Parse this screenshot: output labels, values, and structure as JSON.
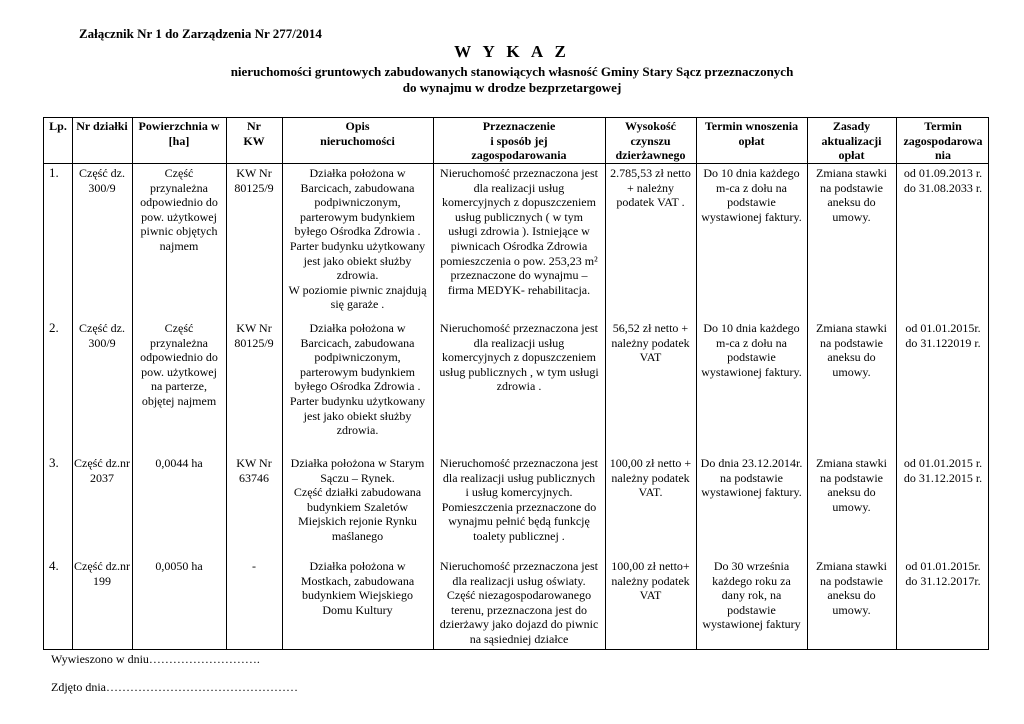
{
  "header": {
    "attachment": "Załącznik Nr 1 do Zarządzenia Nr 277/2014",
    "title": "W Y K A Z",
    "subtitle_line1": "nieruchomości  gruntowych zabudowanych stanowiących własność Gminy Stary Sącz  przeznaczonych",
    "subtitle_line2": "do wynajmu w drodze bezprzetargowej"
  },
  "table": {
    "columns": [
      [
        "Lp."
      ],
      [
        "Nr działki"
      ],
      [
        "Powierzchnia w",
        "[ha]"
      ],
      [
        "Nr",
        "KW"
      ],
      [
        "Opis",
        "nieruchomości"
      ],
      [
        "Przeznaczenie",
        "i sposób jej",
        "zagospodarowania"
      ],
      [
        "Wysokość",
        "czynszu",
        "dzierżawnego"
      ],
      [
        "Termin wnoszenia",
        "opłat"
      ],
      [
        "Zasady",
        "aktualizacji",
        "opłat"
      ],
      [
        "Termin",
        "zagospodarowa",
        "nia"
      ]
    ],
    "rows": [
      [
        [
          "1."
        ],
        [
          "Część dz.",
          "300/9"
        ],
        [
          "Część",
          "przynależna",
          "odpowiednio do",
          "pow. użytkowej",
          "piwnic objętych",
          "najmem"
        ],
        [
          "KW Nr",
          "80125/9"
        ],
        [
          "Działka położona w",
          "Barcicach, zabudowana",
          "podpiwniczonym,",
          "parterowym budynkiem",
          "byłego Ośrodka Zdrowia .",
          "Parter budynku użytkowany",
          "jest jako obiekt służby",
          "zdrowia.",
          "W poziomie piwnic znajdują",
          "się garaże ."
        ],
        [
          "Nieruchomość przeznaczona jest",
          "dla realizacji usług",
          "komercyjnych z dopuszczeniem",
          "usług publicznych  ( w tym",
          "usługi zdrowia ). Istniejące w",
          "piwnicach Ośrodka Zdrowia",
          "pomieszczenia o pow. 253,23 m²",
          "przeznaczone do wynajmu –",
          "firma MEDYK- rehabilitacja."
        ],
        [
          "2.785,53 zł netto",
          "+ należny",
          "podatek VAT  ."
        ],
        [
          "Do 10 dnia każdego",
          "m-ca  z dołu na",
          "podstawie",
          "wystawionej faktury."
        ],
        [
          "Zmiana stawki",
          "na  podstawie",
          "aneksu do",
          "umowy."
        ],
        [
          "od  01.09.2013 r.",
          "do  31.08.2033 r."
        ]
      ],
      [
        [
          "2."
        ],
        [
          "Część dz.",
          "300/9"
        ],
        [
          "Część",
          "przynależna",
          "odpowiednio do",
          "pow. użytkowej",
          "na parterze,",
          "objętej najmem"
        ],
        [
          "KW Nr",
          "80125/9"
        ],
        [
          "Działka położona w",
          "Barcicach, zabudowana",
          "podpiwniczonym,",
          "parterowym budynkiem",
          "byłego Ośrodka Zdrowia .",
          "Parter budynku użytkowany",
          "jest jako obiekt służby",
          "zdrowia."
        ],
        [
          "Nieruchomość przeznaczona jest",
          "dla realizacji usług",
          "komercyjnych z dopuszczeniem",
          "usług publicznych , w tym usługi",
          "zdrowia ."
        ],
        [
          "56,52 zł netto +",
          "należny podatek",
          "VAT"
        ],
        [
          "Do 10 dnia każdego",
          "m-ca z dołu na",
          "podstawie",
          "wystawionej faktury."
        ],
        [
          "Zmiana stawki",
          "na  podstawie",
          "aneksu do",
          "umowy."
        ],
        [
          "od  01.01.2015r.",
          "do 31.122019 r."
        ]
      ],
      [
        [
          "3."
        ],
        [
          "Część dz.nr",
          "2037"
        ],
        [
          "0,0044 ha"
        ],
        [
          "KW Nr",
          "63746"
        ],
        [
          "Działka  położona w Starym",
          "Sączu – Rynek.",
          "Część działki zabudowana",
          "budynkiem Szaletów",
          "Miejskich rejonie Rynku",
          "maślanego"
        ],
        [
          "Nieruchomość przeznaczona jest",
          "dla realizacji usług publicznych",
          "i usług komercyjnych.",
          "Pomieszczenia przeznaczone do",
          "wynajmu  pełnić będą funkcję",
          "toalety publicznej ."
        ],
        [
          "100,00 zł netto +",
          "należny podatek",
          "VAT."
        ],
        [
          "Do dnia 23.12.2014r.",
          "na podstawie",
          "wystawionej faktury."
        ],
        [
          "Zmiana stawki",
          "na  podstawie",
          "aneksu do",
          "umowy."
        ],
        [
          "od  01.01.2015 r.",
          "do  31.12.2015 r."
        ]
      ],
      [
        [
          "4."
        ],
        [
          "Część dz.nr",
          "199"
        ],
        [
          "0,0050 ha"
        ],
        [
          "-"
        ],
        [
          "Działka położona w",
          "Mostkach, zabudowana",
          "budynkiem Wiejskiego",
          "Domu Kultury"
        ],
        [
          "Nieruchomość  przeznaczona jest",
          "dla realizacji usług  oświaty.",
          "Część niezagospodarowanego",
          "terenu, przeznaczona jest do",
          "dzierżawy jako dojazd do piwnic",
          "na sąsiedniej działce"
        ],
        [
          "100,00 zł netto+",
          "należny podatek",
          "VAT"
        ],
        [
          "Do 30 września",
          "każdego roku  za",
          "dany rok, na",
          "podstawie",
          "wystawionej faktury"
        ],
        [
          "Zmiana stawki",
          "na  podstawie",
          "aneksu do",
          "umowy."
        ],
        [
          "od 01.01.2015r.",
          "do 31.12.2017r."
        ]
      ]
    ]
  },
  "footer": {
    "posted": "Wywieszono w dniu……………………….",
    "removed": "Zdjęto dnia…………………………………………"
  }
}
